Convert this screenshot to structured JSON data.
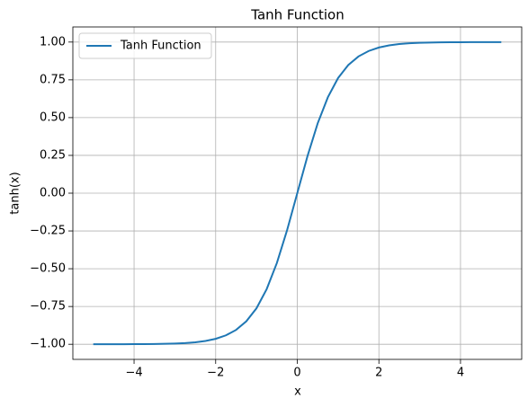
{
  "chart_data": {
    "type": "line",
    "title": "Tanh Function",
    "xlabel": "x",
    "ylabel": "tanh(x)",
    "x": [
      -5,
      -4.75,
      -4.5,
      -4.25,
      -4,
      -3.75,
      -3.5,
      -3.25,
      -3,
      -2.75,
      -2.5,
      -2.25,
      -2,
      -1.75,
      -1.5,
      -1.25,
      -1,
      -0.75,
      -0.5,
      -0.25,
      0,
      0.25,
      0.5,
      0.75,
      1,
      1.25,
      1.5,
      1.75,
      2,
      2.25,
      2.5,
      2.75,
      3,
      3.25,
      3.5,
      3.75,
      4,
      4.25,
      4.5,
      4.75,
      5
    ],
    "series": [
      {
        "name": "Tanh Function",
        "color": "#1f77b4",
        "values": [
          -1.0,
          -1.0,
          -1.0,
          -1.0,
          -0.999,
          -0.999,
          -0.998,
          -0.997,
          -0.995,
          -0.992,
          -0.987,
          -0.978,
          -0.964,
          -0.941,
          -0.905,
          -0.848,
          -0.762,
          -0.635,
          -0.462,
          -0.245,
          0,
          0.245,
          0.462,
          0.635,
          0.762,
          0.848,
          0.905,
          0.941,
          0.964,
          0.978,
          0.987,
          0.992,
          0.995,
          0.997,
          0.998,
          0.999,
          0.999,
          1.0,
          1.0,
          1.0,
          1.0
        ]
      }
    ],
    "xlim": [
      -5.5,
      5.5
    ],
    "ylim": [
      -1.1,
      1.1
    ],
    "xticks": [
      {
        "value": -4,
        "label": "−4"
      },
      {
        "value": -2,
        "label": "−2"
      },
      0,
      2,
      4
    ],
    "yticks": [
      {
        "value": -1,
        "label": "−1.00"
      },
      {
        "value": -0.75,
        "label": "−0.75"
      },
      {
        "value": -0.5,
        "label": "−0.50"
      },
      {
        "value": -0.25,
        "label": "−0.25"
      },
      {
        "value": 0,
        "label": "0.00"
      },
      {
        "value": 0.25,
        "label": "0.25"
      },
      {
        "value": 0.5,
        "label": "0.50"
      },
      {
        "value": 0.75,
        "label": "0.75"
      },
      {
        "value": 1,
        "label": "1.00"
      }
    ],
    "grid": true,
    "legend": "upper left"
  }
}
